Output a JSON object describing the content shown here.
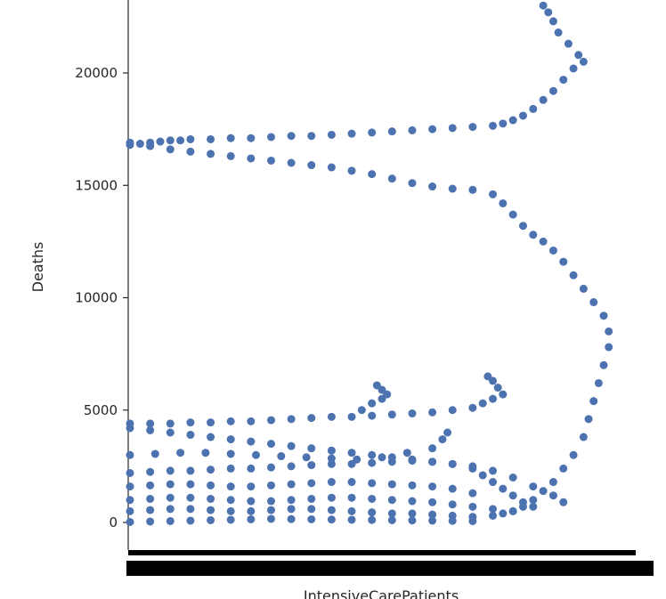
{
  "chart_data": {
    "type": "scatter",
    "title": "",
    "xlabel": "IntensiveCarePatients",
    "ylabel": "Deaths",
    "ylim": [
      -1000,
      23000
    ],
    "yticks": [
      0,
      5000,
      10000,
      15000,
      20000
    ],
    "ytick_labels": [
      "0",
      "5000",
      "10000",
      "15000",
      "20000"
    ],
    "xaxis_note": "categorical x-axis with hundreds of overlapping tick labels rendered as a dense black band",
    "point_color": "#4c72b0",
    "series": [
      {
        "name": "upper-curve",
        "points": [
          [
            0.0,
            16800
          ],
          [
            0.02,
            16850
          ],
          [
            0.04,
            16900
          ],
          [
            0.06,
            16950
          ],
          [
            0.08,
            17000
          ],
          [
            0.1,
            17000
          ],
          [
            0.12,
            17050
          ],
          [
            0.16,
            17050
          ],
          [
            0.2,
            17100
          ],
          [
            0.24,
            17100
          ],
          [
            0.28,
            17150
          ],
          [
            0.32,
            17200
          ],
          [
            0.36,
            17200
          ],
          [
            0.4,
            17250
          ],
          [
            0.44,
            17300
          ],
          [
            0.48,
            17350
          ],
          [
            0.52,
            17400
          ],
          [
            0.56,
            17450
          ],
          [
            0.6,
            17500
          ],
          [
            0.64,
            17550
          ],
          [
            0.68,
            17600
          ],
          [
            0.72,
            17650
          ],
          [
            0.74,
            17750
          ],
          [
            0.76,
            17900
          ],
          [
            0.78,
            18100
          ],
          [
            0.8,
            18400
          ],
          [
            0.82,
            18800
          ],
          [
            0.84,
            19200
          ],
          [
            0.86,
            19700
          ],
          [
            0.88,
            20200
          ],
          [
            0.9,
            20500
          ],
          [
            0.89,
            20800
          ],
          [
            0.87,
            21300
          ],
          [
            0.85,
            21800
          ],
          [
            0.84,
            22300
          ],
          [
            0.83,
            22700
          ],
          [
            0.82,
            23000
          ]
        ]
      },
      {
        "name": "middle-curve",
        "points": [
          [
            0.0,
            16900
          ],
          [
            0.04,
            16750
          ],
          [
            0.08,
            16600
          ],
          [
            0.12,
            16500
          ],
          [
            0.16,
            16400
          ],
          [
            0.2,
            16300
          ],
          [
            0.24,
            16200
          ],
          [
            0.28,
            16100
          ],
          [
            0.32,
            16000
          ],
          [
            0.36,
            15900
          ],
          [
            0.4,
            15800
          ],
          [
            0.44,
            15650
          ],
          [
            0.48,
            15500
          ],
          [
            0.52,
            15300
          ],
          [
            0.56,
            15100
          ],
          [
            0.6,
            14950
          ],
          [
            0.64,
            14850
          ],
          [
            0.68,
            14800
          ],
          [
            0.72,
            14600
          ],
          [
            0.74,
            14200
          ],
          [
            0.76,
            13700
          ],
          [
            0.78,
            13200
          ],
          [
            0.8,
            12800
          ],
          [
            0.82,
            12500
          ],
          [
            0.84,
            12100
          ],
          [
            0.86,
            11600
          ],
          [
            0.88,
            11000
          ],
          [
            0.9,
            10400
          ],
          [
            0.92,
            9800
          ],
          [
            0.94,
            9200
          ],
          [
            0.95,
            8500
          ],
          [
            0.95,
            7800
          ],
          [
            0.94,
            7000
          ],
          [
            0.93,
            6200
          ],
          [
            0.92,
            5400
          ],
          [
            0.91,
            4600
          ],
          [
            0.9,
            3800
          ],
          [
            0.88,
            3000
          ],
          [
            0.86,
            2400
          ],
          [
            0.84,
            1800
          ],
          [
            0.82,
            1400
          ],
          [
            0.8,
            1000
          ],
          [
            0.78,
            700
          ],
          [
            0.76,
            500
          ],
          [
            0.74,
            400
          ],
          [
            0.72,
            300
          ]
        ]
      },
      {
        "name": "ceiling-4400",
        "points": [
          [
            0.0,
            4400
          ],
          [
            0.04,
            4400
          ],
          [
            0.08,
            4400
          ],
          [
            0.12,
            4450
          ],
          [
            0.16,
            4450
          ],
          [
            0.2,
            4500
          ],
          [
            0.24,
            4500
          ],
          [
            0.28,
            4550
          ],
          [
            0.32,
            4600
          ],
          [
            0.36,
            4650
          ],
          [
            0.4,
            4700
          ],
          [
            0.44,
            4700
          ],
          [
            0.48,
            4750
          ],
          [
            0.52,
            4800
          ],
          [
            0.56,
            4850
          ],
          [
            0.6,
            4900
          ],
          [
            0.64,
            5000
          ],
          [
            0.68,
            5100
          ],
          [
            0.7,
            5300
          ],
          [
            0.72,
            5500
          ],
          [
            0.74,
            5700
          ],
          [
            0.73,
            6000
          ],
          [
            0.72,
            6300
          ],
          [
            0.71,
            6500
          ]
        ]
      },
      {
        "name": "bump-5500",
        "points": [
          [
            0.46,
            5000
          ],
          [
            0.48,
            5300
          ],
          [
            0.5,
            5500
          ],
          [
            0.51,
            5700
          ],
          [
            0.5,
            5900
          ],
          [
            0.49,
            6100
          ]
        ]
      },
      {
        "name": "band-4000",
        "points": [
          [
            0.0,
            4200
          ],
          [
            0.04,
            4100
          ],
          [
            0.08,
            4000
          ],
          [
            0.12,
            3900
          ],
          [
            0.16,
            3800
          ],
          [
            0.2,
            3700
          ],
          [
            0.24,
            3600
          ],
          [
            0.28,
            3500
          ],
          [
            0.32,
            3400
          ],
          [
            0.36,
            3300
          ],
          [
            0.4,
            3200
          ],
          [
            0.44,
            3100
          ],
          [
            0.48,
            3000
          ],
          [
            0.52,
            2900
          ],
          [
            0.56,
            2800
          ],
          [
            0.6,
            2700
          ],
          [
            0.64,
            2600
          ],
          [
            0.68,
            2500
          ],
          [
            0.72,
            2300
          ],
          [
            0.76,
            2000
          ],
          [
            0.8,
            1600
          ],
          [
            0.84,
            1200
          ],
          [
            0.86,
            900
          ]
        ]
      },
      {
        "name": "band-3000",
        "points": [
          [
            0.0,
            3000
          ],
          [
            0.05,
            3050
          ],
          [
            0.1,
            3100
          ],
          [
            0.15,
            3100
          ],
          [
            0.2,
            3050
          ],
          [
            0.25,
            3000
          ],
          [
            0.3,
            2950
          ],
          [
            0.35,
            2900
          ],
          [
            0.4,
            2850
          ],
          [
            0.45,
            2800
          ],
          [
            0.5,
            2900
          ],
          [
            0.55,
            3100
          ],
          [
            0.6,
            3300
          ],
          [
            0.62,
            3700
          ],
          [
            0.63,
            4000
          ]
        ]
      },
      {
        "name": "band-2200",
        "points": [
          [
            0.0,
            2200
          ],
          [
            0.04,
            2250
          ],
          [
            0.08,
            2300
          ],
          [
            0.12,
            2300
          ],
          [
            0.16,
            2350
          ],
          [
            0.2,
            2400
          ],
          [
            0.24,
            2400
          ],
          [
            0.28,
            2450
          ],
          [
            0.32,
            2500
          ],
          [
            0.36,
            2550
          ],
          [
            0.4,
            2600
          ],
          [
            0.44,
            2600
          ],
          [
            0.48,
            2650
          ],
          [
            0.52,
            2700
          ],
          [
            0.56,
            2750
          ],
          [
            0.6,
            2700
          ],
          [
            0.64,
            2600
          ],
          [
            0.68,
            2400
          ],
          [
            0.7,
            2100
          ],
          [
            0.72,
            1800
          ],
          [
            0.74,
            1500
          ],
          [
            0.76,
            1200
          ],
          [
            0.78,
            900
          ],
          [
            0.8,
            700
          ]
        ]
      },
      {
        "name": "band-1600",
        "points": [
          [
            0.0,
            1600
          ],
          [
            0.04,
            1650
          ],
          [
            0.08,
            1700
          ],
          [
            0.12,
            1700
          ],
          [
            0.16,
            1650
          ],
          [
            0.2,
            1600
          ],
          [
            0.24,
            1600
          ],
          [
            0.28,
            1650
          ],
          [
            0.32,
            1700
          ],
          [
            0.36,
            1750
          ],
          [
            0.4,
            1800
          ],
          [
            0.44,
            1800
          ],
          [
            0.48,
            1750
          ],
          [
            0.52,
            1700
          ],
          [
            0.56,
            1650
          ],
          [
            0.6,
            1600
          ],
          [
            0.64,
            1500
          ],
          [
            0.68,
            1300
          ]
        ]
      },
      {
        "name": "band-1000",
        "points": [
          [
            0.0,
            1000
          ],
          [
            0.04,
            1050
          ],
          [
            0.08,
            1100
          ],
          [
            0.12,
            1100
          ],
          [
            0.16,
            1050
          ],
          [
            0.2,
            1000
          ],
          [
            0.24,
            950
          ],
          [
            0.28,
            950
          ],
          [
            0.32,
            1000
          ],
          [
            0.36,
            1050
          ],
          [
            0.4,
            1100
          ],
          [
            0.44,
            1100
          ],
          [
            0.48,
            1050
          ],
          [
            0.52,
            1000
          ],
          [
            0.56,
            950
          ],
          [
            0.6,
            900
          ],
          [
            0.64,
            800
          ],
          [
            0.68,
            700
          ],
          [
            0.72,
            600
          ],
          [
            0.76,
            500
          ]
        ]
      },
      {
        "name": "band-500",
        "points": [
          [
            0.0,
            500
          ],
          [
            0.04,
            550
          ],
          [
            0.08,
            600
          ],
          [
            0.12,
            600
          ],
          [
            0.16,
            550
          ],
          [
            0.2,
            500
          ],
          [
            0.24,
            500
          ],
          [
            0.28,
            550
          ],
          [
            0.32,
            600
          ],
          [
            0.36,
            600
          ],
          [
            0.4,
            550
          ],
          [
            0.44,
            500
          ],
          [
            0.48,
            450
          ],
          [
            0.52,
            400
          ],
          [
            0.56,
            400
          ],
          [
            0.6,
            350
          ],
          [
            0.64,
            300
          ],
          [
            0.68,
            250
          ]
        ]
      },
      {
        "name": "baseline",
        "points": [
          [
            0.0,
            20
          ],
          [
            0.04,
            40
          ],
          [
            0.08,
            60
          ],
          [
            0.12,
            80
          ],
          [
            0.16,
            100
          ],
          [
            0.2,
            120
          ],
          [
            0.24,
            140
          ],
          [
            0.28,
            160
          ],
          [
            0.32,
            150
          ],
          [
            0.36,
            140
          ],
          [
            0.4,
            130
          ],
          [
            0.44,
            120
          ],
          [
            0.48,
            110
          ],
          [
            0.52,
            100
          ],
          [
            0.56,
            90
          ],
          [
            0.6,
            80
          ],
          [
            0.64,
            70
          ],
          [
            0.68,
            60
          ]
        ]
      }
    ]
  }
}
